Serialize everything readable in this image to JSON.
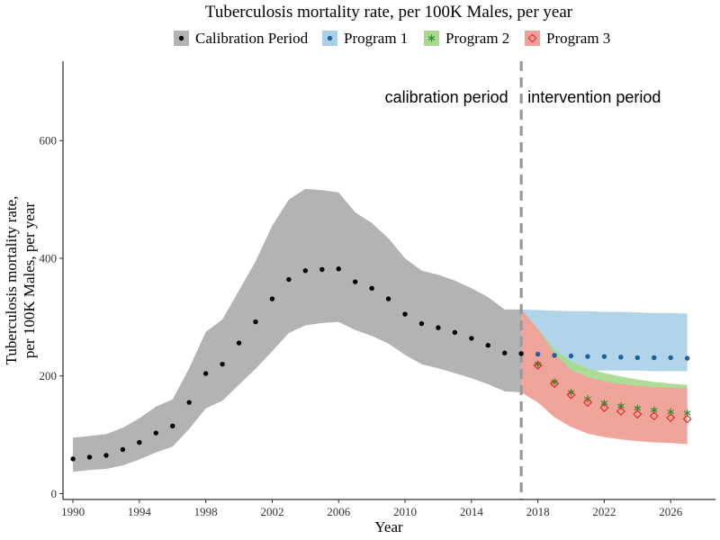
{
  "chart_data": {
    "type": "line",
    "title": "Tuberculosis mortality rate, per 100K Males, per year",
    "xlabel": "Year",
    "ylabel_lines": [
      "Tuberculosis mortality rate,",
      "per 100K Males, per year"
    ],
    "xlim": [
      1989.4,
      2028.7
    ],
    "ylim": [
      -10,
      735
    ],
    "x_ticks": [
      1990,
      1994,
      1998,
      2002,
      2006,
      2010,
      2014,
      2018,
      2022,
      2026
    ],
    "y_ticks": [
      0,
      200,
      400,
      600
    ],
    "grid": false,
    "legend_position": "top",
    "divider_year": 2017,
    "annotations": [
      {
        "text": "calibration period",
        "x": 2012.5,
        "y": 665
      },
      {
        "text": "intervention period",
        "x": 2021.4,
        "y": 665
      }
    ],
    "legend": [
      {
        "label": "Calibration Period",
        "symbol": "dot",
        "fill": "#b3b3b3",
        "color": "#000000"
      },
      {
        "label": "Program 1",
        "symbol": "dot",
        "fill": "#abd0e6",
        "color": "#1f5fa0"
      },
      {
        "label": "Program 2",
        "symbol": "asterisk",
        "fill": "#a6d98f",
        "color": "#2e8b2e"
      },
      {
        "label": "Program 3",
        "symbol": "diamond",
        "fill": "#f4a09a",
        "color": "#e03030"
      }
    ],
    "series": [
      {
        "name": "Calibration Period",
        "color": "#000000",
        "band_color": "#b3b3b3",
        "symbol": "dot",
        "x": [
          1990,
          1991,
          1992,
          1993,
          1994,
          1995,
          1996,
          1997,
          1998,
          1999,
          2000,
          2001,
          2002,
          2003,
          2004,
          2005,
          2006,
          2007,
          2008,
          2009,
          2010,
          2011,
          2012,
          2013,
          2014,
          2015,
          2016,
          2017
        ],
        "y": [
          59,
          62,
          65,
          75,
          87,
          103,
          115,
          155,
          204,
          220,
          256,
          292,
          331,
          364,
          379,
          381,
          382,
          360,
          349,
          331,
          305,
          289,
          282,
          274,
          264,
          252,
          239,
          238
        ],
        "lower": [
          37,
          40,
          42,
          48,
          58,
          70,
          80,
          110,
          145,
          158,
          185,
          212,
          242,
          273,
          286,
          290,
          292,
          278,
          268,
          255,
          236,
          220,
          213,
          205,
          196,
          186,
          174,
          172
        ],
        "upper": [
          95,
          98,
          101,
          112,
          128,
          148,
          160,
          213,
          275,
          296,
          345,
          395,
          455,
          500,
          518,
          516,
          512,
          478,
          460,
          434,
          400,
          379,
          372,
          362,
          349,
          334,
          313,
          313
        ]
      },
      {
        "name": "Program 1",
        "color": "#1f5fa0",
        "band_color": "#abd0e6",
        "symbol": "dot",
        "x": [
          2017,
          2018,
          2019,
          2020,
          2021,
          2022,
          2023,
          2024,
          2025,
          2026,
          2027
        ],
        "y": [
          238,
          237,
          235,
          234,
          233,
          233,
          232,
          231,
          231,
          231,
          230
        ],
        "lower": [
          172,
          205,
          208,
          209,
          209,
          209,
          209,
          209,
          208,
          208,
          208
        ],
        "upper": [
          313,
          312,
          311,
          310,
          310,
          309,
          309,
          308,
          307,
          307,
          306
        ]
      },
      {
        "name": "Program 2",
        "color": "#2e8b2e",
        "band_color": "#a6d98f",
        "symbol": "asterisk",
        "x": [
          2017,
          2018,
          2019,
          2020,
          2021,
          2022,
          2023,
          2024,
          2025,
          2026,
          2027
        ],
        "y": [
          238,
          220,
          190,
          172,
          161,
          154,
          149,
          145,
          142,
          139,
          137
        ],
        "lower": [
          172,
          155,
          130,
          115,
          105,
          99,
          95,
          92,
          89,
          87,
          86
        ],
        "upper": [
          313,
          280,
          245,
          225,
          213,
          205,
          199,
          194,
          190,
          187,
          185
        ]
      },
      {
        "name": "Program 3",
        "color": "#e03030",
        "band_color": "#f4a09a",
        "symbol": "diamond",
        "x": [
          2017,
          2018,
          2019,
          2020,
          2021,
          2022,
          2023,
          2024,
          2025,
          2026,
          2027
        ],
        "y": [
          238,
          218,
          187,
          168,
          155,
          146,
          140,
          135,
          132,
          129,
          127
        ],
        "lower": [
          172,
          155,
          130,
          113,
          102,
          96,
          92,
          89,
          87,
          86,
          84
        ],
        "upper": [
          313,
          280,
          238,
          210,
          198,
          191,
          186,
          183,
          181,
          180,
          179
        ]
      }
    ]
  }
}
